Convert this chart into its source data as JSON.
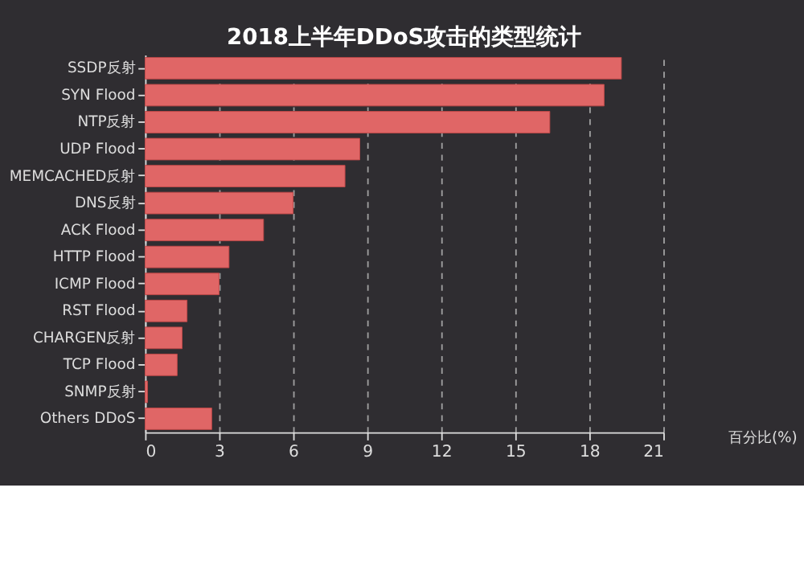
{
  "chart_data": {
    "type": "bar",
    "orientation": "horizontal",
    "title": "2018上半年DDoS攻击的类型统计",
    "xlabel": "百分比(%)",
    "categories": [
      "SSDP反射",
      "SYN Flood",
      "NTP反射",
      "UDP Flood",
      "MEMCACHED反射",
      "DNS反射",
      "ACK Flood",
      "HTTP Flood",
      "ICMP Flood",
      "RST Flood",
      "CHARGEN反射",
      "TCP Flood",
      "SNMP反射",
      "Others DDoS"
    ],
    "values": [
      19.3,
      18.6,
      16.4,
      8.7,
      8.1,
      6.0,
      4.8,
      3.4,
      3.0,
      1.7,
      1.5,
      1.3,
      0.1,
      2.7
    ],
    "color": "#e06666",
    "xlim": [
      0,
      21
    ],
    "xticks": [
      0,
      3,
      6,
      9,
      12,
      15,
      18,
      21
    ],
    "grid": "x"
  }
}
